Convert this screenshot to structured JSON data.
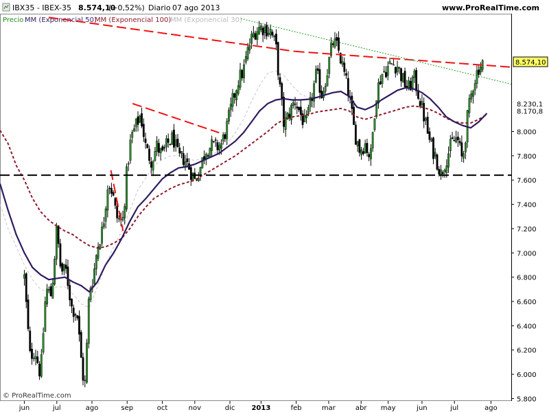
{
  "header": {
    "symbol": "IBX35 - IBEX-35",
    "price": "8.574,10",
    "change": "(+0,52%)",
    "period": "Diario",
    "date": "07 ago 2013",
    "site": "www.ProRealTime.com"
  },
  "legend": {
    "price": "Precio",
    "ema50": "MM (Exponencial 50)",
    "ema100": "MM (Exponencial 100)",
    "ema30": "MM (Exponencial 30)"
  },
  "watermark": "© ProRealTime.com",
  "colors": {
    "up": "#2e8b2e",
    "down": "#000000",
    "ema50": "#2d1a5e",
    "ema100": "#8b1a2a",
    "ema30": "#c8c8c8",
    "resistance": "#ee1111",
    "green_dotted": "#229922",
    "support": "#000000"
  },
  "chart_data": {
    "type": "candlestick",
    "title": "IBX35 - IBEX-35",
    "ylim": [
      5780,
      8970
    ],
    "y_ticks": [
      "5.800",
      "6.000",
      "6.200",
      "6.400",
      "6.600",
      "6.800",
      "7.000",
      "7.200",
      "7.400",
      "7.600",
      "7.800",
      "8.000"
    ],
    "y_tick_values": [
      5800,
      6000,
      6200,
      6400,
      6600,
      6800,
      7000,
      7200,
      7400,
      7600,
      7800,
      8000
    ],
    "price_labels": [
      {
        "text": "8.574,10",
        "value": 8574
      },
      {
        "text": "8.230,1",
        "value": 8230
      },
      {
        "text": "8.170,8",
        "value": 8170
      }
    ],
    "x_ticks": [
      "jun",
      "jul",
      "ago",
      "sep",
      "oct",
      "nov",
      "dic",
      "2013",
      "feb",
      "mar",
      "abr",
      "may",
      "jun",
      "jul",
      "ago"
    ],
    "x_tick_days": [
      0,
      24,
      50,
      76,
      102,
      126,
      152,
      175,
      201,
      225,
      249,
      269,
      294,
      318,
      345
    ],
    "x_range_days": [
      -18,
      360
    ],
    "price_path": [
      [
        0,
        6800
      ],
      [
        4,
        6150
      ],
      [
        8,
        6200
      ],
      [
        12,
        5990
      ],
      [
        16,
        6700
      ],
      [
        20,
        6650
      ],
      [
        24,
        7200
      ],
      [
        27,
        6850
      ],
      [
        31,
        6850
      ],
      [
        35,
        6550
      ],
      [
        39,
        6500
      ],
      [
        43,
        6000
      ],
      [
        45,
        5920
      ],
      [
        48,
        6700
      ],
      [
        51,
        6800
      ],
      [
        54,
        7050
      ],
      [
        58,
        7200
      ],
      [
        62,
        7600
      ],
      [
        65,
        7500
      ],
      [
        68,
        7300
      ],
      [
        71,
        7260
      ],
      [
        73,
        7280
      ],
      [
        76,
        7700
      ],
      [
        79,
        7950
      ],
      [
        83,
        8060
      ],
      [
        86,
        8140
      ],
      [
        90,
        7850
      ],
      [
        94,
        7760
      ],
      [
        98,
        7880
      ],
      [
        102,
        7800
      ],
      [
        106,
        7900
      ],
      [
        110,
        7950
      ],
      [
        114,
        7780
      ],
      [
        118,
        7780
      ],
      [
        122,
        7700
      ],
      [
        126,
        7600
      ],
      [
        130,
        7700
      ],
      [
        134,
        7850
      ],
      [
        138,
        7880
      ],
      [
        142,
        7870
      ],
      [
        146,
        7900
      ],
      [
        150,
        8050
      ],
      [
        154,
        8250
      ],
      [
        158,
        8420
      ],
      [
        162,
        8500
      ],
      [
        166,
        8700
      ],
      [
        170,
        8820
      ],
      [
        174,
        8860
      ],
      [
        178,
        8850
      ],
      [
        182,
        8830
      ],
      [
        186,
        8700
      ],
      [
        189,
        8350
      ],
      [
        192,
        8050
      ],
      [
        196,
        8150
      ],
      [
        200,
        8260
      ],
      [
        204,
        8150
      ],
      [
        208,
        8040
      ],
      [
        212,
        8250
      ],
      [
        216,
        8480
      ],
      [
        220,
        8300
      ],
      [
        224,
        8500
      ],
      [
        228,
        8740
      ],
      [
        232,
        8680
      ],
      [
        236,
        8500
      ],
      [
        240,
        8300
      ],
      [
        244,
        8000
      ],
      [
        248,
        7850
      ],
      [
        252,
        7900
      ],
      [
        256,
        7780
      ],
      [
        260,
        8300
      ],
      [
        264,
        8470
      ],
      [
        268,
        8520
      ],
      [
        272,
        8560
      ],
      [
        276,
        8540
      ],
      [
        280,
        8420
      ],
      [
        284,
        8350
      ],
      [
        288,
        8450
      ],
      [
        292,
        8280
      ],
      [
        296,
        8100
      ],
      [
        300,
        7900
      ],
      [
        304,
        7800
      ],
      [
        308,
        7650
      ],
      [
        312,
        7780
      ],
      [
        316,
        7900
      ],
      [
        320,
        7950
      ],
      [
        324,
        7750
      ],
      [
        328,
        8150
      ],
      [
        332,
        8400
      ],
      [
        336,
        8530
      ],
      [
        340,
        8574
      ]
    ],
    "ema50_path": [
      [
        -18,
        7570
      ],
      [
        -12,
        7350
      ],
      [
        -6,
        7150
      ],
      [
        0,
        7000
      ],
      [
        6,
        6880
      ],
      [
        12,
        6820
      ],
      [
        18,
        6780
      ],
      [
        24,
        6790
      ],
      [
        30,
        6800
      ],
      [
        36,
        6760
      ],
      [
        42,
        6730
      ],
      [
        48,
        6680
      ],
      [
        54,
        6760
      ],
      [
        60,
        6900
      ],
      [
        66,
        7000
      ],
      [
        72,
        7120
      ],
      [
        78,
        7260
      ],
      [
        84,
        7380
      ],
      [
        90,
        7450
      ],
      [
        96,
        7530
      ],
      [
        102,
        7610
      ],
      [
        108,
        7660
      ],
      [
        114,
        7700
      ],
      [
        120,
        7710
      ],
      [
        126,
        7730
      ],
      [
        132,
        7760
      ],
      [
        138,
        7790
      ],
      [
        144,
        7820
      ],
      [
        150,
        7870
      ],
      [
        156,
        7920
      ],
      [
        162,
        7990
      ],
      [
        168,
        8080
      ],
      [
        174,
        8170
      ],
      [
        180,
        8230
      ],
      [
        186,
        8260
      ],
      [
        192,
        8270
      ],
      [
        198,
        8260
      ],
      [
        204,
        8260
      ],
      [
        210,
        8265
      ],
      [
        216,
        8280
      ],
      [
        222,
        8300
      ],
      [
        228,
        8320
      ],
      [
        234,
        8330
      ],
      [
        240,
        8290
      ],
      [
        246,
        8200
      ],
      [
        252,
        8180
      ],
      [
        258,
        8210
      ],
      [
        264,
        8260
      ],
      [
        270,
        8300
      ],
      [
        276,
        8340
      ],
      [
        282,
        8360
      ],
      [
        288,
        8350
      ],
      [
        294,
        8320
      ],
      [
        300,
        8270
      ],
      [
        306,
        8200
      ],
      [
        312,
        8120
      ],
      [
        318,
        8080
      ],
      [
        324,
        8050
      ],
      [
        330,
        8030
      ],
      [
        336,
        8080
      ],
      [
        342,
        8150
      ]
    ],
    "ema100_path": [
      [
        -18,
        8010
      ],
      [
        -12,
        7900
      ],
      [
        -6,
        7720
      ],
      [
        0,
        7600
      ],
      [
        6,
        7450
      ],
      [
        12,
        7340
      ],
      [
        18,
        7270
      ],
      [
        24,
        7220
      ],
      [
        30,
        7180
      ],
      [
        36,
        7150
      ],
      [
        42,
        7100
      ],
      [
        48,
        7060
      ],
      [
        54,
        7040
      ],
      [
        60,
        7050
      ],
      [
        66,
        7080
      ],
      [
        72,
        7120
      ],
      [
        78,
        7200
      ],
      [
        84,
        7300
      ],
      [
        90,
        7380
      ],
      [
        96,
        7450
      ],
      [
        102,
        7490
      ],
      [
        108,
        7530
      ],
      [
        114,
        7560
      ],
      [
        120,
        7580
      ],
      [
        126,
        7600
      ],
      [
        132,
        7640
      ],
      [
        138,
        7680
      ],
      [
        144,
        7720
      ],
      [
        150,
        7760
      ],
      [
        156,
        7800
      ],
      [
        162,
        7850
      ],
      [
        168,
        7900
      ],
      [
        174,
        7950
      ],
      [
        180,
        8000
      ],
      [
        186,
        8060
      ],
      [
        192,
        8100
      ],
      [
        198,
        8120
      ],
      [
        204,
        8130
      ],
      [
        210,
        8140
      ],
      [
        216,
        8160
      ],
      [
        222,
        8170
      ],
      [
        228,
        8180
      ],
      [
        234,
        8190
      ],
      [
        240,
        8170
      ],
      [
        246,
        8120
      ],
      [
        252,
        8100
      ],
      [
        258,
        8120
      ],
      [
        264,
        8140
      ],
      [
        270,
        8160
      ],
      [
        276,
        8180
      ],
      [
        282,
        8200
      ],
      [
        288,
        8210
      ],
      [
        294,
        8200
      ],
      [
        300,
        8180
      ],
      [
        306,
        8150
      ],
      [
        312,
        8110
      ],
      [
        318,
        8080
      ],
      [
        324,
        8070
      ],
      [
        330,
        8070
      ],
      [
        336,
        8100
      ],
      [
        342,
        8140
      ]
    ],
    "ema30_path": [
      [
        -18,
        7400
      ],
      [
        -12,
        7200
      ],
      [
        -6,
        7050
      ],
      [
        0,
        6900
      ],
      [
        6,
        6780
      ],
      [
        12,
        6700
      ],
      [
        18,
        6680
      ],
      [
        24,
        6720
      ],
      [
        30,
        6720
      ],
      [
        36,
        6660
      ],
      [
        42,
        6580
      ],
      [
        48,
        6550
      ],
      [
        54,
        6720
      ],
      [
        60,
        6900
      ],
      [
        66,
        7050
      ],
      [
        72,
        7180
      ],
      [
        78,
        7350
      ],
      [
        84,
        7520
      ],
      [
        90,
        7620
      ],
      [
        96,
        7720
      ],
      [
        102,
        7770
      ],
      [
        108,
        7800
      ],
      [
        114,
        7800
      ],
      [
        120,
        7780
      ],
      [
        126,
        7760
      ],
      [
        132,
        7780
      ],
      [
        138,
        7810
      ],
      [
        144,
        7840
      ],
      [
        150,
        7900
      ],
      [
        156,
        7990
      ],
      [
        162,
        8100
      ],
      [
        168,
        8250
      ],
      [
        174,
        8380
      ],
      [
        180,
        8480
      ],
      [
        186,
        8500
      ],
      [
        192,
        8460
      ],
      [
        198,
        8380
      ],
      [
        204,
        8310
      ],
      [
        210,
        8280
      ]
    ],
    "resistance_lines": [
      {
        "x1": 18,
        "y1": 8940,
        "x2": 200,
        "y2": 8660
      },
      {
        "x1": 200,
        "y1": 8660,
        "x2": 360,
        "y2": 8530
      }
    ],
    "short_trend_lines": [
      {
        "x1": 80,
        "y1": 8230,
        "x2": 144,
        "y2": 7990
      },
      {
        "x1": 64,
        "y1": 7680,
        "x2": 73,
        "y2": 7180
      }
    ],
    "green_dotted_line": {
      "x1": 160,
      "y1": 8930,
      "x2": 360,
      "y2": 8390
    },
    "support_line": {
      "value": 7640,
      "x1": -18,
      "x2": 360
    }
  }
}
